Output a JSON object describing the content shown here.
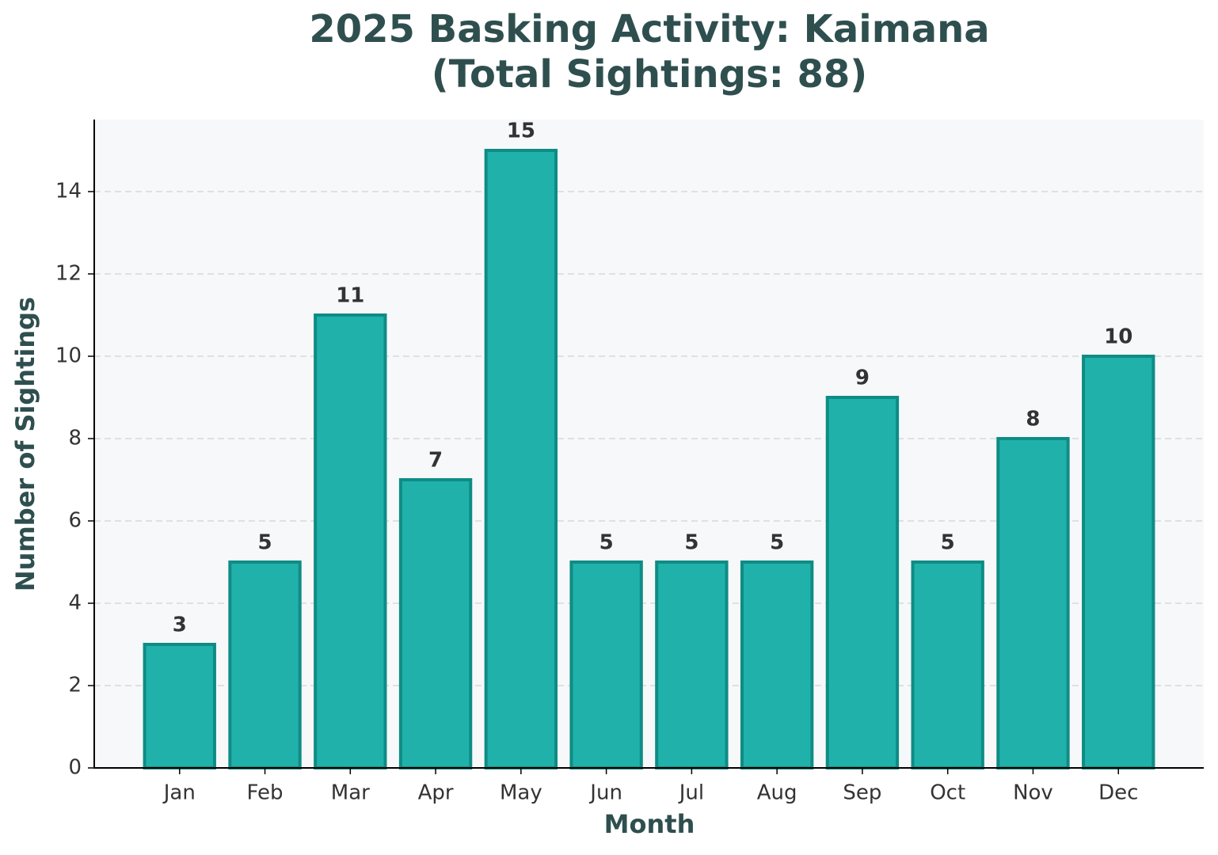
{
  "chart_data": {
    "type": "bar",
    "title": [
      "2025 Basking Activity: Kaimana",
      "(Total Sightings: 88)"
    ],
    "x_label": "Month",
    "y_label": "Number of Sightings",
    "categories": [
      "Jan",
      "Feb",
      "Mar",
      "Apr",
      "May",
      "Jun",
      "Jul",
      "Aug",
      "Sep",
      "Oct",
      "Nov",
      "Dec"
    ],
    "values": [
      3,
      5,
      11,
      7,
      15,
      5,
      5,
      5,
      9,
      5,
      8,
      10
    ],
    "color": "#20b2aa",
    "edge_color": "#0e8c85",
    "ylim": [
      0,
      15.75
    ],
    "yticks": [
      0,
      2,
      4,
      6,
      8,
      10,
      12,
      14
    ],
    "grid": true
  }
}
